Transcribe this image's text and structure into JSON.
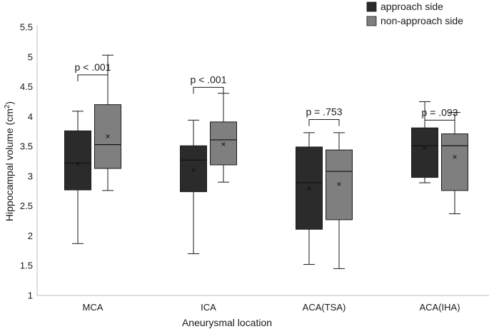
{
  "chart_data": {
    "type": "boxplot",
    "title": "",
    "xlabel": "Aneurysmal location",
    "ylabel": "Hippocampal volume (cm",
    "ylabel_superscript": "2",
    "ylabel_close": ")",
    "ylim": [
      1,
      5.5
    ],
    "yticks": [
      "1",
      "1.5",
      "2",
      "2.5",
      "3",
      "3.5",
      "4",
      "4.5",
      "5",
      "5.5"
    ],
    "ytick_values": [
      1,
      1.5,
      2,
      2.5,
      3,
      3.5,
      4,
      4.5,
      5,
      5.5
    ],
    "categories": [
      "MCA",
      "ICA",
      "ACA(TSA)",
      "ACA(IHA)"
    ],
    "legend_position": "top-right",
    "series": [
      {
        "name": "approach side",
        "color": "#2b2b2b",
        "boxes": [
          {
            "min": 1.87,
            "q1": 2.77,
            "median": 3.22,
            "q3": 3.76,
            "max": 4.09,
            "mean": 3.2
          },
          {
            "min": 1.7,
            "q1": 2.74,
            "median": 3.27,
            "q3": 3.51,
            "max": 3.94,
            "mean": 3.1
          },
          {
            "min": 1.52,
            "q1": 2.11,
            "median": 2.89,
            "q3": 3.49,
            "max": 3.73,
            "mean": 2.79
          },
          {
            "min": 2.89,
            "q1": 2.98,
            "median": 3.51,
            "q3": 3.81,
            "max": 4.25,
            "mean": 3.47
          }
        ]
      },
      {
        "name": "non-approach side",
        "color": "#7f7f7f",
        "boxes": [
          {
            "min": 2.76,
            "q1": 3.13,
            "median": 3.53,
            "q3": 4.2,
            "max": 5.03,
            "mean": 3.67
          },
          {
            "min": 2.9,
            "q1": 3.19,
            "median": 3.61,
            "q3": 3.91,
            "max": 4.39,
            "mean": 3.54
          },
          {
            "min": 1.45,
            "q1": 2.27,
            "median": 3.08,
            "q3": 3.44,
            "max": 3.73,
            "mean": 2.87
          },
          {
            "min": 2.37,
            "q1": 2.76,
            "median": 3.51,
            "q3": 3.71,
            "max": 4.07,
            "mean": 3.32
          }
        ]
      }
    ],
    "annotations": [
      {
        "category": "MCA",
        "text": "p < .001",
        "bracket_y": 4.7
      },
      {
        "category": "ICA",
        "text": "p < .001",
        "bracket_y": 4.49
      },
      {
        "category": "ACA(TSA)",
        "text": "p = .753",
        "bracket_y": 3.95
      },
      {
        "category": "ACA(IHA)",
        "text": "p = .093",
        "bracket_y": 3.94
      }
    ],
    "mean_marker": "×"
  }
}
